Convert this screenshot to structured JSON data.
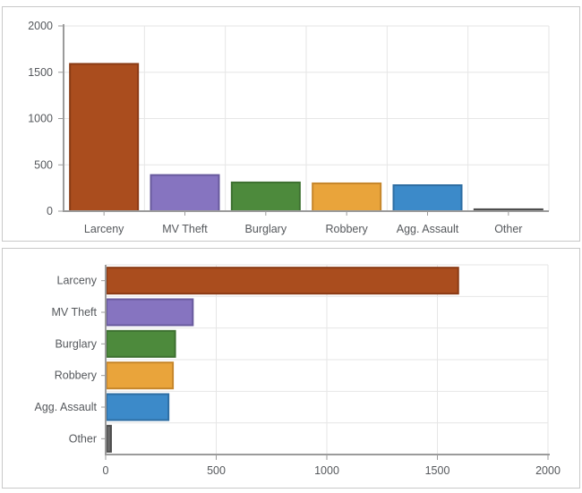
{
  "style": {
    "background": "#ffffff",
    "panel_border": "#c9c9c9",
    "grid_color": "#e6e6e6",
    "axis_color": "#9b9b9b",
    "label_color": "#55585c"
  },
  "chart_data": [
    {
      "type": "bar",
      "orientation": "vertical",
      "title": "",
      "xlabel": "",
      "ylabel": "",
      "categories": [
        "Larceny",
        "MV Theft",
        "Burglary",
        "Robbery",
        "Agg. Assault",
        "Other"
      ],
      "values": [
        1590,
        390,
        310,
        300,
        280,
        20
      ],
      "value_axis": {
        "min": 0,
        "max": 2000,
        "ticks": [
          0,
          500,
          1000,
          1500,
          2000
        ]
      },
      "grid": true,
      "legend": "none",
      "bar_colors": [
        "#aa4d1e",
        "#8674c0",
        "#4d8a3c",
        "#e9a43b",
        "#3c8ac9",
        "#696969"
      ],
      "bar_border_colors": [
        "#8a3a14",
        "#685a9d",
        "#3d7030",
        "#c6862b",
        "#2e6ea3",
        "#4d4d4d"
      ]
    },
    {
      "type": "bar",
      "orientation": "horizontal",
      "title": "",
      "xlabel": "",
      "ylabel": "",
      "categories": [
        "Larceny",
        "MV Theft",
        "Burglary",
        "Robbery",
        "Agg. Assault",
        "Other"
      ],
      "values": [
        1590,
        390,
        310,
        300,
        280,
        20
      ],
      "value_axis": {
        "min": 0,
        "max": 2000,
        "ticks": [
          0,
          500,
          1000,
          1500,
          2000
        ]
      },
      "grid": true,
      "legend": "none",
      "bar_colors": [
        "#aa4d1e",
        "#8674c0",
        "#4d8a3c",
        "#e9a43b",
        "#3c8ac9",
        "#696969"
      ],
      "bar_border_colors": [
        "#8a3a14",
        "#685a9d",
        "#3d7030",
        "#c6862b",
        "#2e6ea3",
        "#4d4d4d"
      ]
    }
  ]
}
